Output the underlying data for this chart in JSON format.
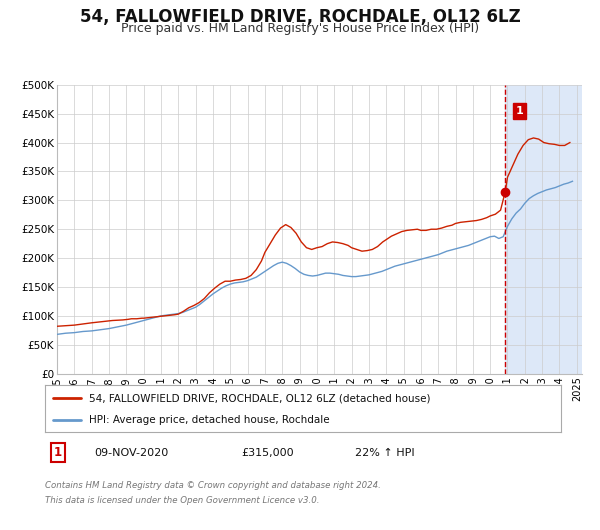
{
  "title": "54, FALLOWFIELD DRIVE, ROCHDALE, OL12 6LZ",
  "subtitle": "Price paid vs. HM Land Registry's House Price Index (HPI)",
  "ylim": [
    0,
    500000
  ],
  "xlim_start": 1995.0,
  "xlim_end": 2025.3,
  "yticks": [
    0,
    50000,
    100000,
    150000,
    200000,
    250000,
    300000,
    350000,
    400000,
    450000,
    500000
  ],
  "ytick_labels": [
    "£0",
    "£50K",
    "£100K",
    "£150K",
    "£200K",
    "£250K",
    "£300K",
    "£350K",
    "£400K",
    "£450K",
    "£500K"
  ],
  "xticks": [
    1995,
    1996,
    1997,
    1998,
    1999,
    2000,
    2001,
    2002,
    2003,
    2004,
    2005,
    2006,
    2007,
    2008,
    2009,
    2010,
    2011,
    2012,
    2013,
    2014,
    2015,
    2016,
    2017,
    2018,
    2019,
    2020,
    2021,
    2022,
    2023,
    2024,
    2025
  ],
  "vline_x": 2020.87,
  "vline_color": "#cc0000",
  "highlight_fill": "#dde8f8",
  "sale_marker_x": 2020.87,
  "sale_marker_y": 315000,
  "sale_marker_color": "#cc0000",
  "annotation_label": "1",
  "annotation_box_color": "#cc0000",
  "legend_line1": "54, FALLOWFIELD DRIVE, ROCHDALE, OL12 6LZ (detached house)",
  "legend_line2": "HPI: Average price, detached house, Rochdale",
  "footer_line1": "Contains HM Land Registry data © Crown copyright and database right 2024.",
  "footer_line2": "This data is licensed under the Open Government Licence v3.0.",
  "note_label": "1",
  "note_date": "09-NOV-2020",
  "note_price": "£315,000",
  "note_hpi": "22% ↑ HPI",
  "red_line_color": "#cc2200",
  "blue_line_color": "#6699cc",
  "background_color": "#ffffff",
  "grid_color": "#cccccc",
  "title_fontsize": 12,
  "subtitle_fontsize": 9,
  "hpi_x": [
    1995.0,
    1995.25,
    1995.5,
    1995.75,
    1996.0,
    1996.25,
    1996.5,
    1996.75,
    1997.0,
    1997.25,
    1997.5,
    1997.75,
    1998.0,
    1998.25,
    1998.5,
    1998.75,
    1999.0,
    1999.25,
    1999.5,
    1999.75,
    2000.0,
    2000.25,
    2000.5,
    2000.75,
    2001.0,
    2001.25,
    2001.5,
    2001.75,
    2002.0,
    2002.25,
    2002.5,
    2002.75,
    2003.0,
    2003.25,
    2003.5,
    2003.75,
    2004.0,
    2004.25,
    2004.5,
    2004.75,
    2005.0,
    2005.25,
    2005.5,
    2005.75,
    2006.0,
    2006.25,
    2006.5,
    2006.75,
    2007.0,
    2007.25,
    2007.5,
    2007.75,
    2008.0,
    2008.25,
    2008.5,
    2008.75,
    2009.0,
    2009.25,
    2009.5,
    2009.75,
    2010.0,
    2010.25,
    2010.5,
    2010.75,
    2011.0,
    2011.25,
    2011.5,
    2011.75,
    2012.0,
    2012.25,
    2012.5,
    2012.75,
    2013.0,
    2013.25,
    2013.5,
    2013.75,
    2014.0,
    2014.25,
    2014.5,
    2014.75,
    2015.0,
    2015.25,
    2015.5,
    2015.75,
    2016.0,
    2016.25,
    2016.5,
    2016.75,
    2017.0,
    2017.25,
    2017.5,
    2017.75,
    2018.0,
    2018.25,
    2018.5,
    2018.75,
    2019.0,
    2019.25,
    2019.5,
    2019.75,
    2020.0,
    2020.25,
    2020.5,
    2020.75,
    2021.0,
    2021.25,
    2021.5,
    2021.75,
    2022.0,
    2022.25,
    2022.5,
    2022.75,
    2023.0,
    2023.25,
    2023.5,
    2023.75,
    2024.0,
    2024.25,
    2024.5,
    2024.75
  ],
  "hpi_y": [
    68000,
    69000,
    70000,
    70500,
    71000,
    72000,
    73000,
    73500,
    74000,
    75000,
    76000,
    77000,
    78000,
    79500,
    81000,
    82500,
    84000,
    86000,
    88000,
    90000,
    92000,
    94000,
    96000,
    98000,
    100000,
    101000,
    102000,
    103000,
    104000,
    106000,
    109000,
    112000,
    115000,
    120000,
    126000,
    132000,
    138000,
    143000,
    148000,
    152000,
    155000,
    157000,
    158000,
    159000,
    161000,
    164000,
    167000,
    172000,
    177000,
    182000,
    187000,
    191000,
    193000,
    191000,
    187000,
    182000,
    176000,
    172000,
    170000,
    169000,
    170000,
    172000,
    174000,
    174000,
    173000,
    172000,
    170000,
    169000,
    168000,
    168000,
    169000,
    170000,
    171000,
    173000,
    175000,
    177000,
    180000,
    183000,
    186000,
    188000,
    190000,
    192000,
    194000,
    196000,
    198000,
    200000,
    202000,
    204000,
    206000,
    209000,
    212000,
    214000,
    216000,
    218000,
    220000,
    222000,
    225000,
    228000,
    231000,
    234000,
    237000,
    238000,
    234000,
    237000,
    255000,
    268000,
    278000,
    285000,
    295000,
    303000,
    308000,
    312000,
    315000,
    318000,
    320000,
    322000,
    325000,
    328000,
    330000,
    333000
  ],
  "red_x": [
    1995.0,
    1995.5,
    1996.0,
    1996.5,
    1997.0,
    1997.3,
    1997.6,
    1997.9,
    1998.2,
    1998.5,
    1998.8,
    1999.1,
    1999.3,
    1999.6,
    1999.9,
    2000.0,
    2000.3,
    2000.6,
    2000.9,
    2001.2,
    2001.5,
    2001.8,
    2002.0,
    2002.3,
    2002.6,
    2002.9,
    2003.2,
    2003.5,
    2003.8,
    2004.1,
    2004.4,
    2004.7,
    2005.0,
    2005.3,
    2005.6,
    2005.9,
    2006.2,
    2006.5,
    2006.8,
    2007.0,
    2007.3,
    2007.6,
    2007.9,
    2008.2,
    2008.5,
    2008.8,
    2009.1,
    2009.4,
    2009.7,
    2010.0,
    2010.3,
    2010.6,
    2010.9,
    2011.2,
    2011.5,
    2011.8,
    2012.0,
    2012.3,
    2012.6,
    2012.9,
    2013.2,
    2013.5,
    2013.8,
    2014.0,
    2014.3,
    2014.6,
    2014.9,
    2015.2,
    2015.5,
    2015.8,
    2016.0,
    2016.3,
    2016.6,
    2016.9,
    2017.2,
    2017.5,
    2017.8,
    2018.0,
    2018.3,
    2018.6,
    2018.9,
    2019.2,
    2019.5,
    2019.8,
    2020.0,
    2020.3,
    2020.6,
    2020.87,
    2021.0,
    2021.3,
    2021.6,
    2021.9,
    2022.2,
    2022.5,
    2022.8,
    2023.1,
    2023.4,
    2023.7,
    2024.0,
    2024.3,
    2024.6
  ],
  "red_y": [
    82000,
    83000,
    84000,
    86000,
    88000,
    89000,
    90000,
    91000,
    92000,
    92500,
    93000,
    94000,
    95000,
    95000,
    96000,
    96000,
    97000,
    98000,
    99000,
    100000,
    101000,
    102000,
    103000,
    108000,
    114000,
    118000,
    123000,
    130000,
    140000,
    148000,
    155000,
    160000,
    160000,
    162000,
    163000,
    165000,
    170000,
    180000,
    195000,
    210000,
    225000,
    240000,
    252000,
    258000,
    253000,
    243000,
    228000,
    218000,
    215000,
    218000,
    220000,
    225000,
    228000,
    227000,
    225000,
    222000,
    218000,
    215000,
    212000,
    213000,
    215000,
    220000,
    228000,
    232000,
    238000,
    242000,
    246000,
    248000,
    249000,
    250000,
    248000,
    248000,
    250000,
    250000,
    252000,
    255000,
    257000,
    260000,
    262000,
    263000,
    264000,
    265000,
    267000,
    270000,
    273000,
    276000,
    283000,
    315000,
    340000,
    360000,
    380000,
    395000,
    405000,
    408000,
    406000,
    400000,
    398000,
    397000,
    395000,
    395000,
    400000
  ]
}
